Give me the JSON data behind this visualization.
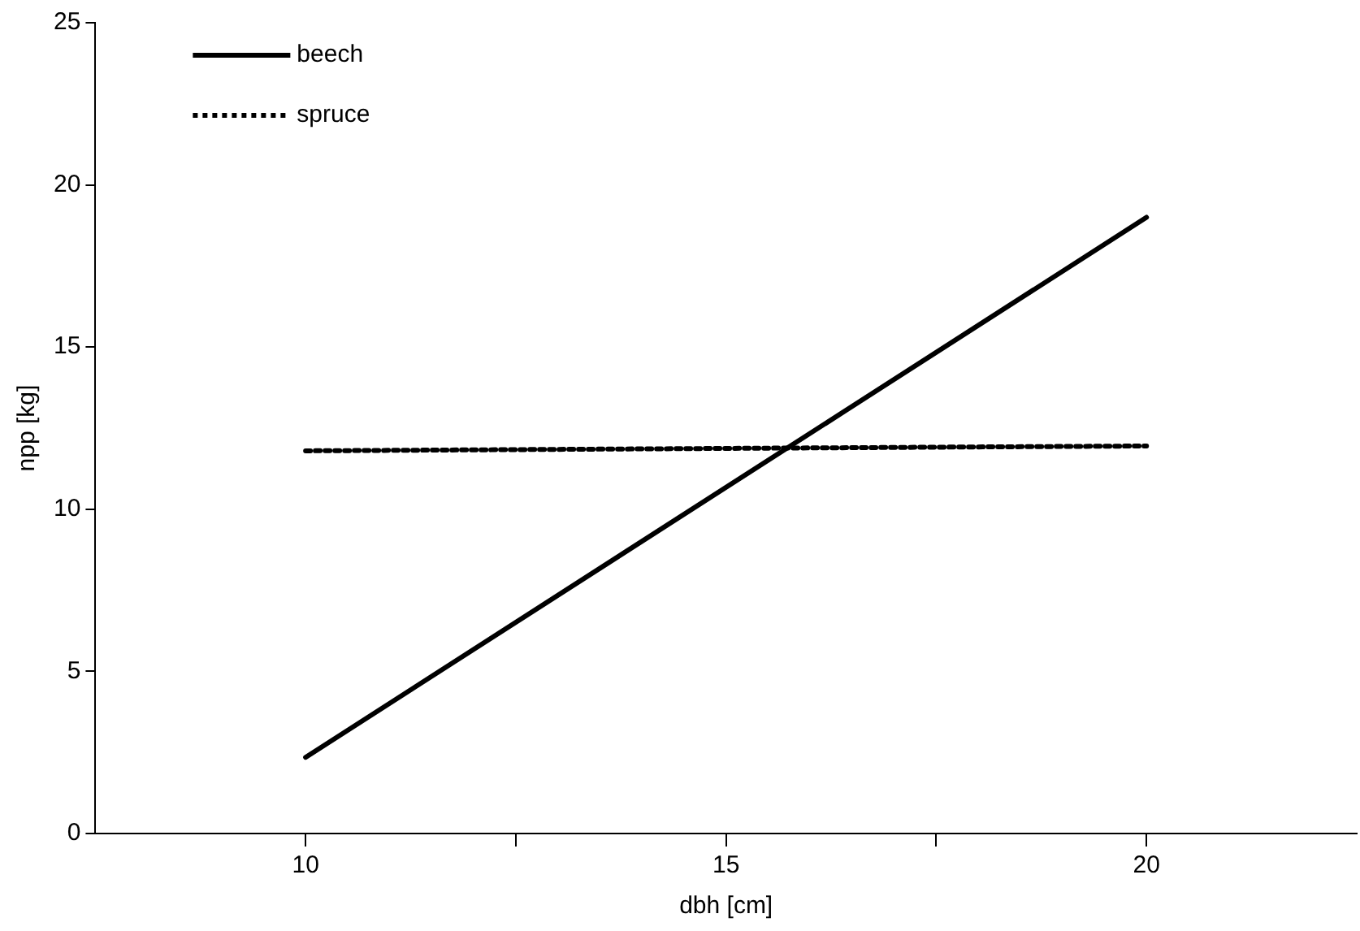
{
  "chart_data": {
    "type": "line",
    "xlabel": "dbh [cm]",
    "ylabel": "npp [kg]",
    "x": [
      10,
      20
    ],
    "series": [
      {
        "name": "beech",
        "color": "#000000",
        "values": [
          2.35,
          19.0
        ],
        "line_style": "solid"
      },
      {
        "name": "spruce",
        "color": "#000000",
        "values": [
          11.8,
          11.95
        ],
        "line_style": "dotted"
      }
    ],
    "xlim": [
      7.5,
      22.5
    ],
    "xticks": [
      10,
      {
        "value": 12.5,
        "label": null
      },
      15,
      {
        "value": 17.5,
        "label": null
      },
      20
    ],
    "ylim": [
      0,
      25
    ],
    "yticks": [
      0,
      5,
      10,
      15,
      20,
      25
    ],
    "grid": false,
    "legend": "top left",
    "marker": "none"
  }
}
